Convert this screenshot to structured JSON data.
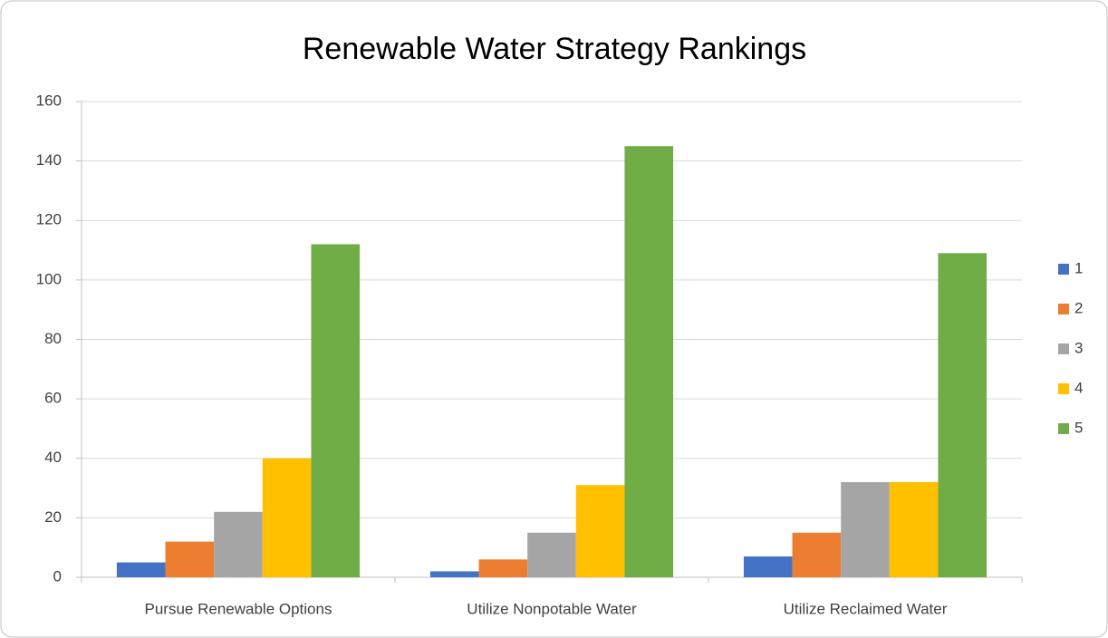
{
  "chart_data": {
    "type": "bar",
    "title": "Renewable Water Strategy Rankings",
    "categories": [
      "Pursue Renewable Options",
      "Utilize Nonpotable Water",
      "Utilize Reclaimed Water"
    ],
    "series": [
      {
        "name": "1",
        "color": "#4472c4",
        "values": [
          5,
          2,
          7
        ]
      },
      {
        "name": "2",
        "color": "#ed7d31",
        "values": [
          12,
          6,
          15
        ]
      },
      {
        "name": "3",
        "color": "#a5a5a5",
        "values": [
          22,
          15,
          32
        ]
      },
      {
        "name": "4",
        "color": "#ffc000",
        "values": [
          40,
          31,
          32
        ]
      },
      {
        "name": "5",
        "color": "#70ad47",
        "values": [
          112,
          145,
          109
        ]
      }
    ],
    "ylim": [
      0,
      160
    ],
    "yticks": [
      0,
      20,
      40,
      60,
      80,
      100,
      120,
      140,
      160
    ],
    "grid": true,
    "legend": "right"
  }
}
